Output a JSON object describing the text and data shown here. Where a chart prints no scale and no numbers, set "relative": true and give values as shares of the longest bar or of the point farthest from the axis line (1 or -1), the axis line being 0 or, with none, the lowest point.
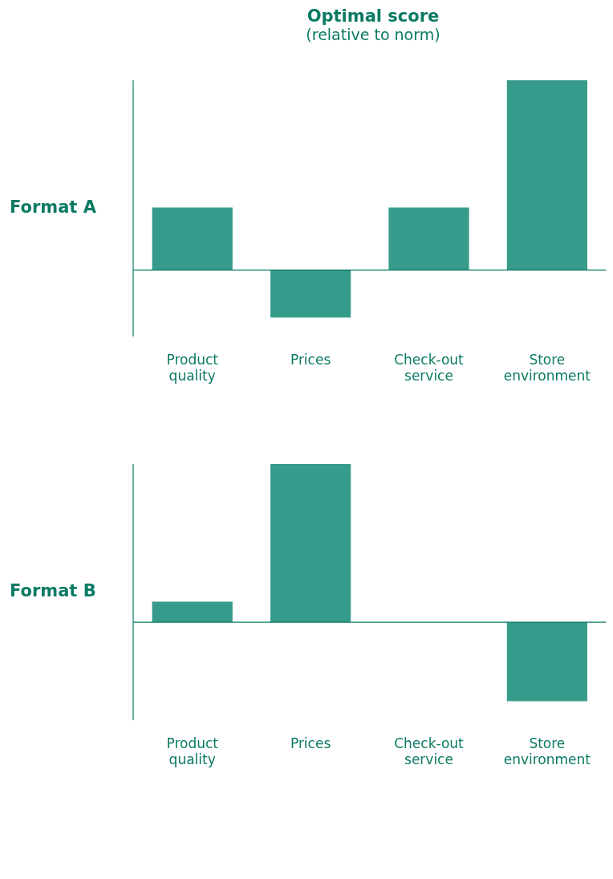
{
  "chart_data": [
    {
      "type": "bar",
      "title": "Optimal score",
      "subtitle": "(relative to norm)",
      "ylabel": "Format A",
      "relative": true,
      "categories": [
        "Product quality",
        "Prices",
        "Check-out service",
        "Store environment"
      ],
      "values": [
        0.33,
        -0.25,
        0.33,
        1
      ],
      "color": "#369b8b",
      "grid": false,
      "legend": false,
      "ref_lines": [
        {
          "axis": "y",
          "value": 0,
          "color": "#0b7a63"
        }
      ]
    },
    {
      "type": "bar",
      "ylabel": "Format B",
      "relative": true,
      "categories": [
        "Product quality",
        "Prices",
        "Check-out service",
        "Store environment"
      ],
      "values": [
        0.13,
        1,
        0,
        -0.5
      ],
      "color": "#369b8b",
      "grid": false,
      "legend": false,
      "ref_lines": [
        {
          "axis": "y",
          "value": 0,
          "color": "#0b7a63"
        }
      ]
    }
  ]
}
